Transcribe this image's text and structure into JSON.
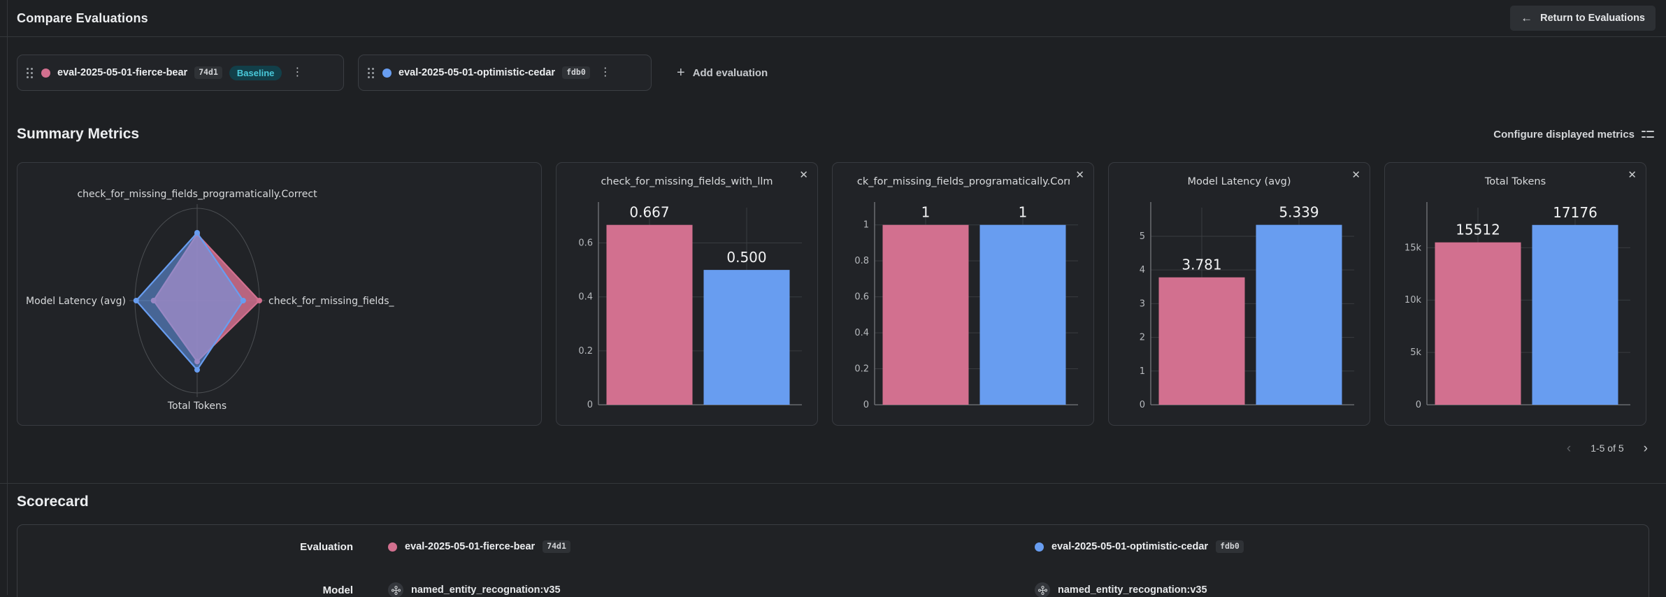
{
  "ui": {
    "title": "Compare Evaluations",
    "return_button": "Return to Evaluations",
    "add_evaluation": "Add evaluation",
    "summary_title": "Summary Metrics",
    "configure_metrics": "Configure displayed metrics",
    "pagination": "1-5 of 5",
    "scorecard_title": "Scorecard",
    "row_labels": [
      "Evaluation",
      "Model"
    ]
  },
  "icons": {
    "back_arrow": "←",
    "plus": "+",
    "kebab": "⋮",
    "close": "✕",
    "chevron_left": "‹",
    "chevron_right": "›"
  },
  "evaluations": [
    {
      "name": "eval-2025-05-01-fierce-bear",
      "hash": "74d1",
      "badge": "Baseline",
      "color": "#d2708f",
      "model": "named_entity_recognation:v35"
    },
    {
      "name": "eval-2025-05-01-optimistic-cedar",
      "hash": "fdb0",
      "badge": null,
      "color": "#689df0",
      "model": "named_entity_recognation:v35"
    }
  ],
  "colors": {
    "pink": "#d2708f",
    "blue": "#689df0",
    "baseline_text": "#49c9da",
    "baseline_bg": "#123f49",
    "grid": "#393c40",
    "axis": "#75787d",
    "radar_ring": "#4b4e52",
    "tick_text": "#b6b9bd",
    "chart_text": "#d8dadc"
  },
  "chart_data": [
    {
      "type": "radar",
      "axes": [
        "check_for_missing_fields_programatically.Correct",
        "check_for_missing_fields_",
        "Total Tokens",
        "Model Latency (avg)"
      ],
      "series": [
        {
          "name": "eval-2025-05-01-fierce-bear",
          "color": "#d2708f",
          "values_fraction": [
            0.72,
            1.0,
            0.66,
            0.7
          ]
        },
        {
          "name": "eval-2025-05-01-optimistic-cedar",
          "color": "#689df0",
          "values_fraction": [
            0.735,
            0.74,
            0.75,
            0.98
          ]
        }
      ],
      "note": "values are fractions of outer ring radius"
    },
    {
      "type": "bar",
      "title": "check_for_missing_fields_with_llm",
      "categories": [
        "eval-2025-05-01-fierce-bear",
        "eval-2025-05-01-optimistic-cedar"
      ],
      "values": [
        0.667,
        0.5
      ],
      "value_labels": [
        "0.667",
        "0.500"
      ],
      "yticks": [
        0,
        0.2,
        0.4,
        0.6
      ],
      "ytick_labels": [
        "0",
        "0.2",
        "0.4",
        "0.6"
      ],
      "ylim": [
        0,
        0.731
      ]
    },
    {
      "type": "bar",
      "title": "check_for_missing_fields_programatically.Correct",
      "categories": [
        "eval-2025-05-01-fierce-bear",
        "eval-2025-05-01-optimistic-cedar"
      ],
      "values": [
        1,
        1
      ],
      "value_labels": [
        "1",
        "1"
      ],
      "yticks": [
        0,
        0.2,
        0.4,
        0.6,
        0.8,
        1
      ],
      "ytick_labels": [
        "0",
        "0.2",
        "0.4",
        "0.6",
        "0.8",
        "1"
      ],
      "ylim": [
        0,
        1.096
      ]
    },
    {
      "type": "bar",
      "title": "Model Latency (avg)",
      "categories": [
        "eval-2025-05-01-fierce-bear",
        "eval-2025-05-01-optimistic-cedar"
      ],
      "values": [
        3.781,
        5.339
      ],
      "value_labels": [
        "3.781",
        "5.339"
      ],
      "yticks": [
        0,
        1,
        2,
        3,
        4,
        5
      ],
      "ytick_labels": [
        "0",
        "1",
        "2",
        "3",
        "4",
        "5"
      ],
      "ylim": [
        0,
        5.85
      ]
    },
    {
      "type": "bar",
      "title": "Total Tokens",
      "categories": [
        "eval-2025-05-01-fierce-bear",
        "eval-2025-05-01-optimistic-cedar"
      ],
      "values": [
        15512,
        17176
      ],
      "value_labels": [
        "15512",
        "17176"
      ],
      "yticks": [
        0,
        5000,
        10000,
        15000
      ],
      "ytick_labels": [
        "0",
        "5k",
        "10k",
        "15k"
      ],
      "ylim": [
        0,
        18830
      ]
    }
  ]
}
